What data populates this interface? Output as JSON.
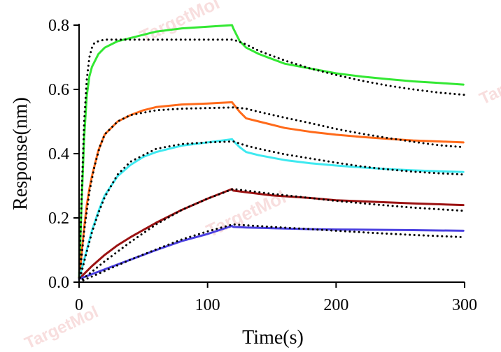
{
  "chart_data": {
    "type": "line",
    "title": "",
    "xlabel": "Time(s)",
    "ylabel": "Response(nm)",
    "xlim": [
      0,
      300
    ],
    "ylim": [
      0,
      0.8
    ],
    "xticks": [
      0,
      100,
      200,
      300
    ],
    "xtick_labels": [
      "0",
      "100",
      "200",
      "300"
    ],
    "yticks": [
      0.0,
      0.2,
      0.4,
      0.6,
      0.8
    ],
    "ytick_labels": [
      "0.0",
      "0.2",
      "0.4",
      "0.6",
      "0.8"
    ],
    "grid": false,
    "legend": "none",
    "dissociation_start": 120,
    "series": [
      {
        "color": "#33e833",
        "x": [
          0,
          2,
          4,
          6,
          8,
          10,
          15,
          20,
          30,
          40,
          50,
          60,
          80,
          100,
          119,
          120,
          125,
          130,
          140,
          160,
          180,
          200,
          220,
          240,
          260,
          280,
          299
        ],
        "y": [
          0.01,
          0.25,
          0.45,
          0.58,
          0.64,
          0.67,
          0.71,
          0.73,
          0.75,
          0.76,
          0.77,
          0.78,
          0.79,
          0.795,
          0.8,
          0.79,
          0.75,
          0.73,
          0.71,
          0.68,
          0.665,
          0.65,
          0.64,
          0.632,
          0.625,
          0.62,
          0.615
        ]
      },
      {
        "color": "#ff6a1a",
        "x": [
          0,
          2,
          4,
          6,
          8,
          10,
          15,
          20,
          30,
          40,
          50,
          60,
          80,
          100,
          119,
          120,
          125,
          130,
          140,
          160,
          180,
          200,
          220,
          240,
          260,
          280,
          299
        ],
        "y": [
          0.01,
          0.09,
          0.17,
          0.24,
          0.29,
          0.33,
          0.41,
          0.46,
          0.5,
          0.52,
          0.535,
          0.545,
          0.553,
          0.556,
          0.56,
          0.555,
          0.53,
          0.51,
          0.5,
          0.48,
          0.468,
          0.459,
          0.452,
          0.446,
          0.441,
          0.438,
          0.435
        ]
      },
      {
        "color": "#3fe9f0",
        "x": [
          0,
          2,
          4,
          6,
          8,
          10,
          15,
          20,
          30,
          40,
          50,
          60,
          80,
          100,
          119,
          120,
          125,
          130,
          140,
          160,
          180,
          200,
          220,
          240,
          260,
          280,
          299
        ],
        "y": [
          0.01,
          0.04,
          0.07,
          0.1,
          0.13,
          0.16,
          0.22,
          0.27,
          0.33,
          0.365,
          0.39,
          0.405,
          0.425,
          0.435,
          0.445,
          0.44,
          0.42,
          0.405,
          0.395,
          0.38,
          0.37,
          0.363,
          0.357,
          0.352,
          0.348,
          0.345,
          0.343
        ]
      },
      {
        "color": "#9b1212",
        "x": [
          0,
          5,
          10,
          20,
          30,
          40,
          60,
          80,
          100,
          119,
          120,
          130,
          150,
          180,
          200,
          230,
          260,
          299
        ],
        "y": [
          0.01,
          0.03,
          0.05,
          0.085,
          0.115,
          0.14,
          0.185,
          0.225,
          0.26,
          0.29,
          0.285,
          0.28,
          0.27,
          0.262,
          0.255,
          0.25,
          0.245,
          0.24
        ]
      },
      {
        "color": "#4a3fe0",
        "x": [
          0,
          10,
          20,
          40,
          60,
          80,
          100,
          119,
          120,
          130,
          150,
          180,
          200,
          230,
          260,
          299
        ],
        "y": [
          0.01,
          0.025,
          0.04,
          0.07,
          0.1,
          0.128,
          0.15,
          0.175,
          0.172,
          0.17,
          0.168,
          0.165,
          0.164,
          0.163,
          0.162,
          0.16
        ]
      }
    ],
    "fits": [
      {
        "style": "dotted",
        "color": "#000000",
        "x": [
          0,
          2,
          4,
          6,
          8,
          10,
          12,
          15,
          20,
          30,
          40,
          60,
          80,
          100,
          120,
          130,
          140,
          160,
          180,
          200,
          220,
          240,
          260,
          280,
          300
        ],
        "y": [
          0.0,
          0.27,
          0.5,
          0.63,
          0.7,
          0.73,
          0.745,
          0.75,
          0.755,
          0.755,
          0.755,
          0.755,
          0.755,
          0.755,
          0.755,
          0.74,
          0.72,
          0.69,
          0.665,
          0.645,
          0.627,
          0.612,
          0.6,
          0.59,
          0.583
        ]
      },
      {
        "style": "dotted",
        "color": "#000000",
        "x": [
          0,
          4,
          8,
          12,
          16,
          20,
          30,
          40,
          60,
          80,
          100,
          120,
          130,
          140,
          160,
          180,
          200,
          220,
          240,
          260,
          280,
          300
        ],
        "y": [
          0.0,
          0.16,
          0.28,
          0.36,
          0.42,
          0.46,
          0.5,
          0.52,
          0.535,
          0.54,
          0.542,
          0.544,
          0.54,
          0.53,
          0.512,
          0.495,
          0.477,
          0.462,
          0.449,
          0.437,
          0.426,
          0.42
        ]
      },
      {
        "style": "dotted",
        "color": "#000000",
        "x": [
          0,
          5,
          10,
          15,
          20,
          30,
          40,
          60,
          80,
          100,
          120,
          130,
          140,
          160,
          180,
          200,
          220,
          240,
          260,
          280,
          300
        ],
        "y": [
          0.0,
          0.08,
          0.155,
          0.215,
          0.265,
          0.335,
          0.375,
          0.415,
          0.43,
          0.435,
          0.438,
          0.425,
          0.415,
          0.398,
          0.385,
          0.372,
          0.36,
          0.351,
          0.344,
          0.339,
          0.335
        ]
      },
      {
        "style": "dotted",
        "color": "#000000",
        "x": [
          0,
          20,
          40,
          60,
          80,
          100,
          120,
          130,
          150,
          180,
          200,
          230,
          260,
          300
        ],
        "y": [
          0.0,
          0.065,
          0.125,
          0.18,
          0.225,
          0.26,
          0.29,
          0.285,
          0.275,
          0.262,
          0.253,
          0.242,
          0.232,
          0.222
        ]
      },
      {
        "style": "dotted",
        "color": "#000000",
        "x": [
          0,
          20,
          40,
          60,
          80,
          100,
          120,
          130,
          150,
          180,
          200,
          230,
          260,
          300
        ],
        "y": [
          0.0,
          0.035,
          0.07,
          0.102,
          0.133,
          0.158,
          0.18,
          0.177,
          0.172,
          0.165,
          0.16,
          0.153,
          0.147,
          0.14
        ]
      }
    ]
  },
  "watermark": {
    "text": "TargetMol",
    "color": "#f3c4c4"
  }
}
